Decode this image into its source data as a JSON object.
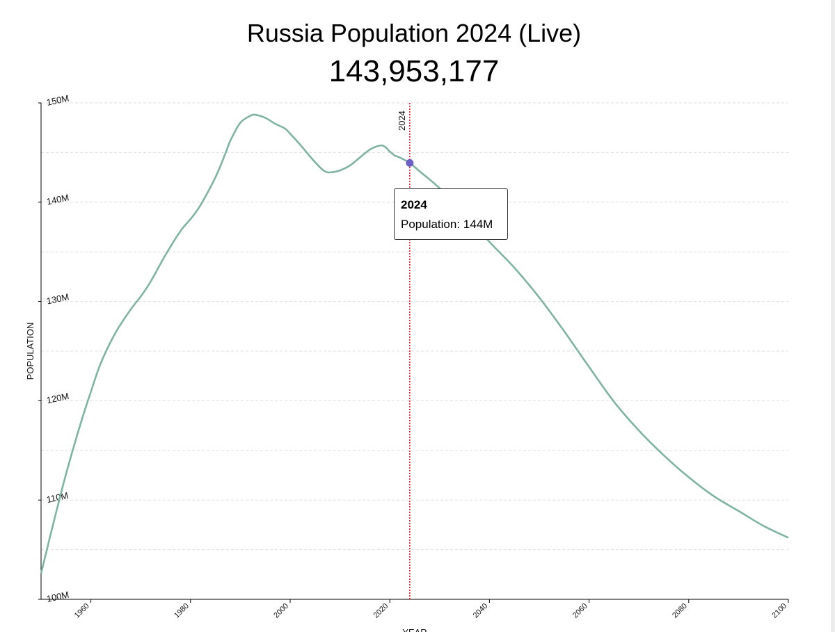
{
  "page": {
    "title": "Russia Population 2024 (Live)",
    "live_count": "143,953,177"
  },
  "tooltip": {
    "year": "2024",
    "label": "Population: ",
    "value": "144M"
  },
  "colors": {
    "line": "#7fb3a3",
    "marker_line": "#e8202a",
    "point": "#6b5fc4",
    "grid": "#dddddd",
    "axis": "#000000"
  },
  "chart_data": {
    "type": "line",
    "title": "Russia Population 2024 (Live)",
    "xlabel": "YEAR",
    "ylabel": "POPULATION",
    "xlim": [
      1950,
      2100
    ],
    "ylim": [
      100000000,
      150000000
    ],
    "x_ticks": [
      1960,
      1980,
      2000,
      2020,
      2040,
      2060,
      2080,
      2100
    ],
    "y_ticks": [
      {
        "value": 100000000,
        "label": "100M"
      },
      {
        "value": 110000000,
        "label": "110M"
      },
      {
        "value": 120000000,
        "label": "120M"
      },
      {
        "value": 130000000,
        "label": "130M"
      },
      {
        "value": 140000000,
        "label": "140M"
      },
      {
        "value": 150000000,
        "label": "150M"
      }
    ],
    "grid": true,
    "marker": {
      "year": 2024,
      "label": "2024",
      "value": 143953177
    },
    "series": [
      {
        "x": [
          1950,
          1952,
          1955,
          1958,
          1960,
          1962,
          1965,
          1968,
          1970,
          1972,
          1975,
          1978,
          1980,
          1982,
          1985,
          1987,
          1988,
          1990,
          1992,
          1993,
          1995,
          1997,
          1999,
          2000,
          2002,
          2004,
          2006,
          2007,
          2008,
          2010,
          2012,
          2014,
          2016,
          2018,
          2019,
          2020,
          2021,
          2022,
          2024,
          2026,
          2030,
          2035,
          2040,
          2045,
          2050,
          2055,
          2060,
          2065,
          2070,
          2075,
          2080,
          2085,
          2090,
          2095,
          2100
        ],
        "y": [
          102600000,
          106700000,
          112600000,
          117800000,
          120900000,
          123800000,
          126900000,
          129200000,
          130500000,
          132000000,
          134700000,
          137100000,
          138300000,
          139700000,
          142500000,
          144900000,
          146200000,
          148000000,
          148700000,
          148800000,
          148500000,
          147900000,
          147400000,
          146900000,
          145800000,
          144600000,
          143500000,
          143100000,
          143000000,
          143200000,
          143700000,
          144500000,
          145300000,
          145700000,
          145600000,
          145100000,
          144700000,
          144500000,
          143950000,
          143100000,
          141400000,
          138800000,
          136000000,
          133400000,
          130400000,
          127000000,
          123400000,
          119900000,
          117000000,
          114500000,
          112300000,
          110400000,
          108900000,
          107400000,
          106200000
        ]
      }
    ]
  }
}
